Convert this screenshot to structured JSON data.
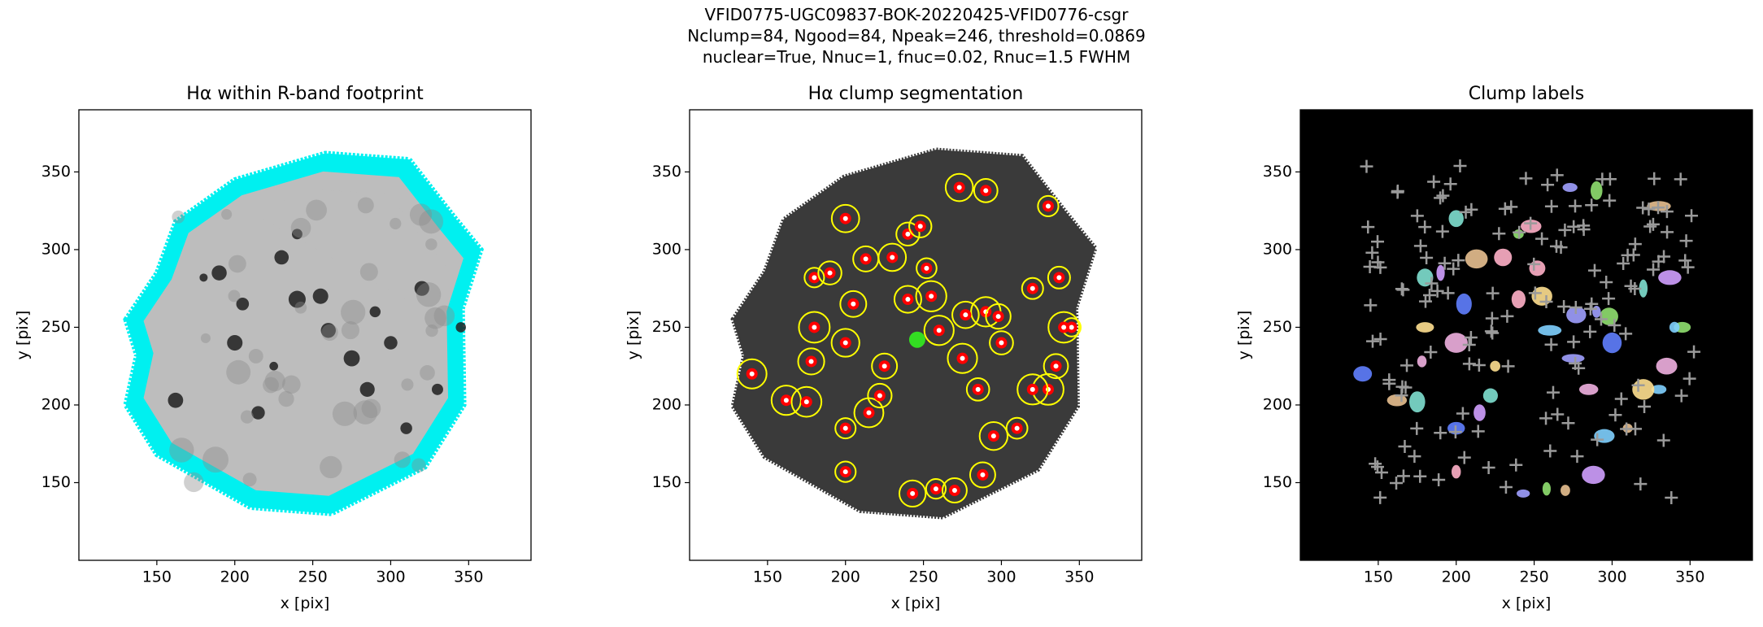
{
  "figure_title": [
    "VFID0775-UGC09837-BOK-20220425-VFID0776-csgr",
    "Nclump=84, Ngood=84, Npeak=246, threshold=0.0869",
    "nuclear=True, Nnuc=1, fnuc=0.02, Rnuc=1.5 FWHM"
  ],
  "chart_data": [
    {
      "type": "image",
      "title": "Hα within R-band footprint",
      "xlabel": "x [pix]",
      "ylabel": "y [pix]",
      "xlim": [
        100,
        390
      ],
      "ylim": [
        100,
        390
      ],
      "xticks": [
        150,
        200,
        250,
        300,
        350
      ],
      "yticks": [
        150,
        200,
        250,
        300,
        350
      ],
      "colors": [
        "#00f0f0",
        "#bdbdbd"
      ]
    },
    {
      "type": "image",
      "title": "Hα clump segmentation",
      "xlabel": "x [pix]",
      "ylabel": "y [pix]",
      "xlim": [
        100,
        390
      ],
      "ylim": [
        100,
        390
      ],
      "xticks": [
        150,
        200,
        250,
        300,
        350
      ],
      "yticks": [
        150,
        200,
        250,
        300,
        350
      ],
      "colors": [
        "#3a3a3a",
        "#ff0000",
        "#ffff00"
      ]
    },
    {
      "type": "image",
      "title": "Clump labels",
      "xlabel": "x [pix]",
      "ylabel": "y [pix]",
      "xlim": [
        100,
        390
      ],
      "ylim": [
        100,
        390
      ],
      "xticks": [
        150,
        200,
        250,
        300,
        350
      ],
      "yticks": [
        150,
        200,
        250,
        300,
        350
      ],
      "colors": [
        "#000000",
        "#9a9a9a"
      ]
    }
  ]
}
